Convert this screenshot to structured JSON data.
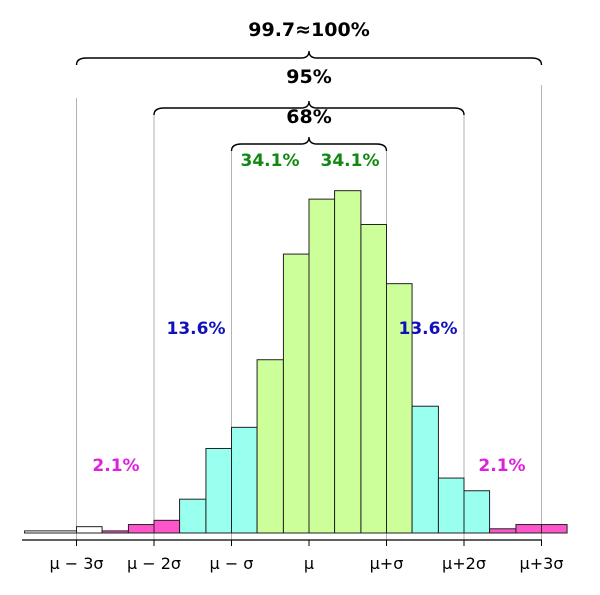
{
  "chart_data": {
    "type": "bar",
    "x_ticks": [
      "μ − 3σ",
      "μ − 2σ",
      "μ − σ",
      "μ",
      "μ+σ",
      "μ+2σ",
      "μ+3σ"
    ],
    "bins_per_sigma": 3,
    "bins": [
      {
        "sigma_start": -3.67,
        "sigma_end": -3.0,
        "value": 0.5,
        "band": "outside"
      },
      {
        "sigma_start": -3.0,
        "sigma_end": -2.67,
        "value": 1.5,
        "band": "outside"
      },
      {
        "sigma_start": -2.67,
        "sigma_end": -2.33,
        "value": 0.5,
        "band": "2sigma"
      },
      {
        "sigma_start": -2.33,
        "sigma_end": -2.0,
        "value": 2,
        "band": "2sigma"
      },
      {
        "sigma_start": -2.0,
        "sigma_end": -1.67,
        "value": 3,
        "band": "2sigma"
      },
      {
        "sigma_start": -1.67,
        "sigma_end": -1.33,
        "value": 8,
        "band": "1sigma"
      },
      {
        "sigma_start": -1.33,
        "sigma_end": -1.0,
        "value": 20,
        "band": "1sigma"
      },
      {
        "sigma_start": -1.0,
        "sigma_end": -0.67,
        "value": 25,
        "band": "1sigma"
      },
      {
        "sigma_start": -0.67,
        "sigma_end": -0.33,
        "value": 41,
        "band": "center"
      },
      {
        "sigma_start": -0.33,
        "sigma_end": 0.0,
        "value": 66,
        "band": "center"
      },
      {
        "sigma_start": 0.0,
        "sigma_end": 0.33,
        "value": 79,
        "band": "center"
      },
      {
        "sigma_start": 0.33,
        "sigma_end": 0.67,
        "value": 81,
        "band": "center"
      },
      {
        "sigma_start": 0.67,
        "sigma_end": 1.0,
        "value": 73,
        "band": "center"
      },
      {
        "sigma_start": 1.0,
        "sigma_end": 1.33,
        "value": 59,
        "band": "center"
      },
      {
        "sigma_start": 1.33,
        "sigma_end": 1.67,
        "value": 30,
        "band": "1sigma"
      },
      {
        "sigma_start": 1.67,
        "sigma_end": 2.0,
        "value": 13,
        "band": "1sigma"
      },
      {
        "sigma_start": 2.0,
        "sigma_end": 2.33,
        "value": 10,
        "band": "1sigma"
      },
      {
        "sigma_start": 2.33,
        "sigma_end": 2.67,
        "value": 1,
        "band": "2sigma"
      },
      {
        "sigma_start": 2.67,
        "sigma_end": 3.0,
        "value": 2,
        "band": "2sigma"
      },
      {
        "sigma_start": 3.0,
        "sigma_end": 3.33,
        "value": 2,
        "band": "2sigma"
      }
    ],
    "ylim": [
      0,
      84
    ],
    "xlim_sigma": [
      -3.67,
      3.0
    ],
    "grid": false,
    "band_colors": {
      "center": "#ccff99",
      "1sigma": "#99ffee",
      "2sigma": "#ff55cc",
      "outside": "#ffffff"
    },
    "percent_labels": [
      {
        "text": "34.1%",
        "color": "#118811",
        "region": "μ−σ to μ"
      },
      {
        "text": "34.1%",
        "color": "#118811",
        "region": "μ to μ+σ"
      },
      {
        "text": "13.6%",
        "color": "#1111bb",
        "region": "μ−2σ to μ−σ"
      },
      {
        "text": "13.6%",
        "color": "#1111bb",
        "region": "μ+σ to μ+2σ"
      },
      {
        "text": "2.1%",
        "color": "#dd22dd",
        "region": "μ−3σ to μ−2σ"
      },
      {
        "text": "2.1%",
        "color": "#dd22dd",
        "region": "μ+2σ to μ+3σ"
      }
    ],
    "braces": [
      {
        "text": "99.7≈100%",
        "from_sigma": -3,
        "to_sigma": 3
      },
      {
        "text": "95%",
        "from_sigma": -2,
        "to_sigma": 2
      },
      {
        "text": "68%",
        "from_sigma": -1,
        "to_sigma": 1
      }
    ]
  }
}
